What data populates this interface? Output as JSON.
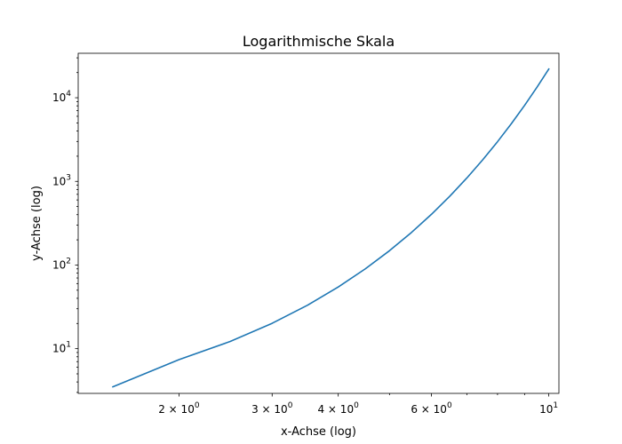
{
  "chart_data": {
    "type": "line",
    "title": "Logarithmische Skala",
    "xlabel": "x-Achse (log)",
    "ylabel": "y-Achse (log)",
    "xscale": "log",
    "yscale": "log",
    "xlim": [
      1.29,
      10.45
    ],
    "ylim": [
      2.92,
      34000
    ],
    "grid": false,
    "legend": "none",
    "colors": {
      "series": "#1f77b4",
      "axis": "#000000",
      "background": "#ffffff"
    },
    "x_major_ticks": [
      {
        "value": 2,
        "base": "2 × 10",
        "exp": "0"
      },
      {
        "value": 3,
        "base": "3 × 10",
        "exp": "0"
      },
      {
        "value": 4,
        "base": "4 × 10",
        "exp": "0"
      },
      {
        "value": 6,
        "base": "6 × 10",
        "exp": "0"
      },
      {
        "value": 10,
        "base": "10",
        "exp": "1"
      }
    ],
    "x_minor_ticks": [
      5,
      7,
      8,
      9
    ],
    "y_major_ticks": [
      {
        "value": 10,
        "base": "10",
        "exp": "1"
      },
      {
        "value": 100,
        "base": "10",
        "exp": "2"
      },
      {
        "value": 1000,
        "base": "10",
        "exp": "3"
      },
      {
        "value": 10000,
        "base": "10",
        "exp": "4"
      }
    ],
    "y_minor_ticks": [
      3,
      4,
      5,
      6,
      7,
      8,
      9,
      20,
      30,
      40,
      50,
      60,
      70,
      80,
      90,
      200,
      300,
      400,
      500,
      600,
      700,
      800,
      900,
      2000,
      3000,
      4000,
      5000,
      6000,
      7000,
      8000,
      9000,
      20000,
      30000
    ],
    "series": [
      {
        "x": [
          1.5,
          2,
          2.5,
          3,
          3.5,
          4,
          4.5,
          5,
          5.5,
          6,
          6.5,
          7,
          7.5,
          8,
          8.5,
          9,
          9.5,
          10
        ],
        "y": [
          3.5,
          7.4,
          12.2,
          20.1,
          33.1,
          54.6,
          90.0,
          148.4,
          244.7,
          403.4,
          665.1,
          1096.6,
          1808.0,
          2981.0,
          4914.8,
          8103.1,
          13359.7,
          22026.5
        ]
      }
    ]
  }
}
